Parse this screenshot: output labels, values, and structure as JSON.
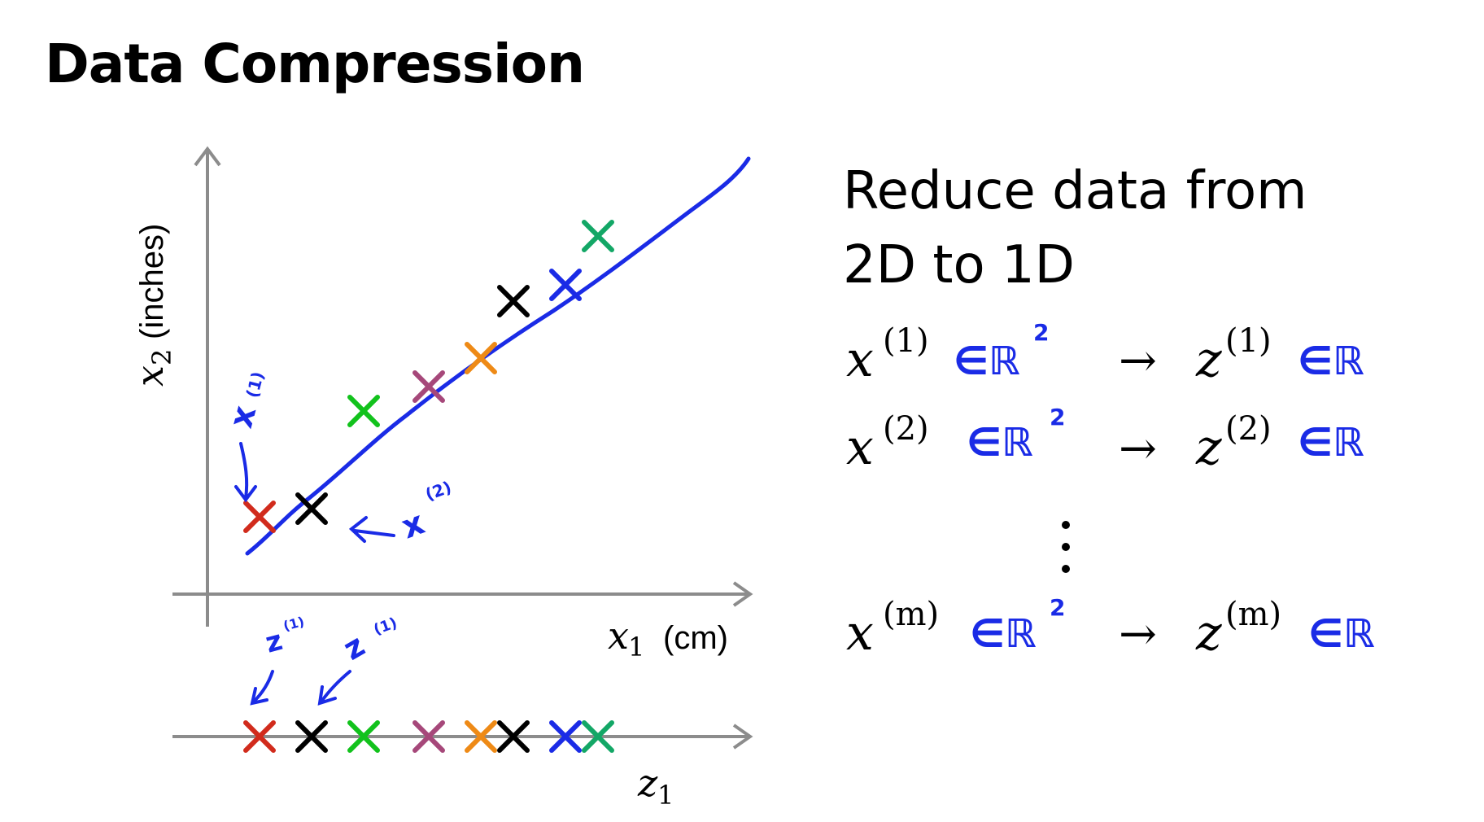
{
  "title": "Data Compression",
  "description": {
    "line1": "Reduce data from",
    "line2": "2D to 1D"
  },
  "plot": {
    "y_axis_label": "(inches)",
    "x_axis_label": "(cm)",
    "z_axis_label": "z"
  },
  "annotations": {
    "x1": "x",
    "x1_sup": "(1)",
    "x2": "x",
    "x2_sup": "(2)",
    "z1": "z",
    "z1_sup": "(1)",
    "z2": "z",
    "z2_sup": "(1)"
  },
  "mappings": [
    {
      "x": "x",
      "x_sup": "(1)",
      "in_x": "∈ℝ",
      "in_x_sup": "2",
      "arrow": "→",
      "z": "z",
      "z_sup": "(1)",
      "in_z": "∈ℝ"
    },
    {
      "x": "x",
      "x_sup": "(2)",
      "in_x": "∈ℝ",
      "in_x_sup": "2",
      "arrow": "→",
      "z": "z",
      "z_sup": "(2)",
      "in_z": "∈ℝ"
    },
    {
      "x": "x",
      "x_sup": "(m)",
      "in_x": "∈ℝ",
      "in_x_sup": "2",
      "arrow": "→",
      "z": "z",
      "z_sup": "(m)",
      "in_z": "∈ℝ"
    }
  ],
  "colors": {
    "pen_blue": "#1a2be6",
    "axis_gray": "#8c8c8c",
    "red": "#d12b1c",
    "black": "#000000",
    "green": "#12c21c",
    "purple": "#a6487a",
    "orange": "#ee8a16",
    "blue": "#1a2be6",
    "teal": "#13a766"
  },
  "points": [
    {
      "id": "p1",
      "color": "#d12b1c",
      "x1": 0.8,
      "x2": 1.0,
      "z": 0.8
    },
    {
      "id": "p2",
      "color": "#000000",
      "x1": 1.6,
      "x2": 1.2,
      "z": 1.6
    },
    {
      "id": "p3",
      "color": "#12c21c",
      "x1": 2.4,
      "x2": 3.6,
      "z": 2.4
    },
    {
      "id": "p4",
      "color": "#a6487a",
      "x1": 3.4,
      "x2": 4.2,
      "z": 3.4
    },
    {
      "id": "p5",
      "color": "#ee8a16",
      "x1": 4.2,
      "x2": 4.9,
      "z": 4.2
    },
    {
      "id": "p6",
      "color": "#000000",
      "x1": 4.7,
      "x2": 6.3,
      "z": 4.7
    },
    {
      "id": "p7",
      "color": "#1a2be6",
      "x1": 5.5,
      "x2": 6.7,
      "z": 5.5
    },
    {
      "id": "p8",
      "color": "#13a766",
      "x1": 6.0,
      "x2": 7.9,
      "z": 6.0
    }
  ]
}
